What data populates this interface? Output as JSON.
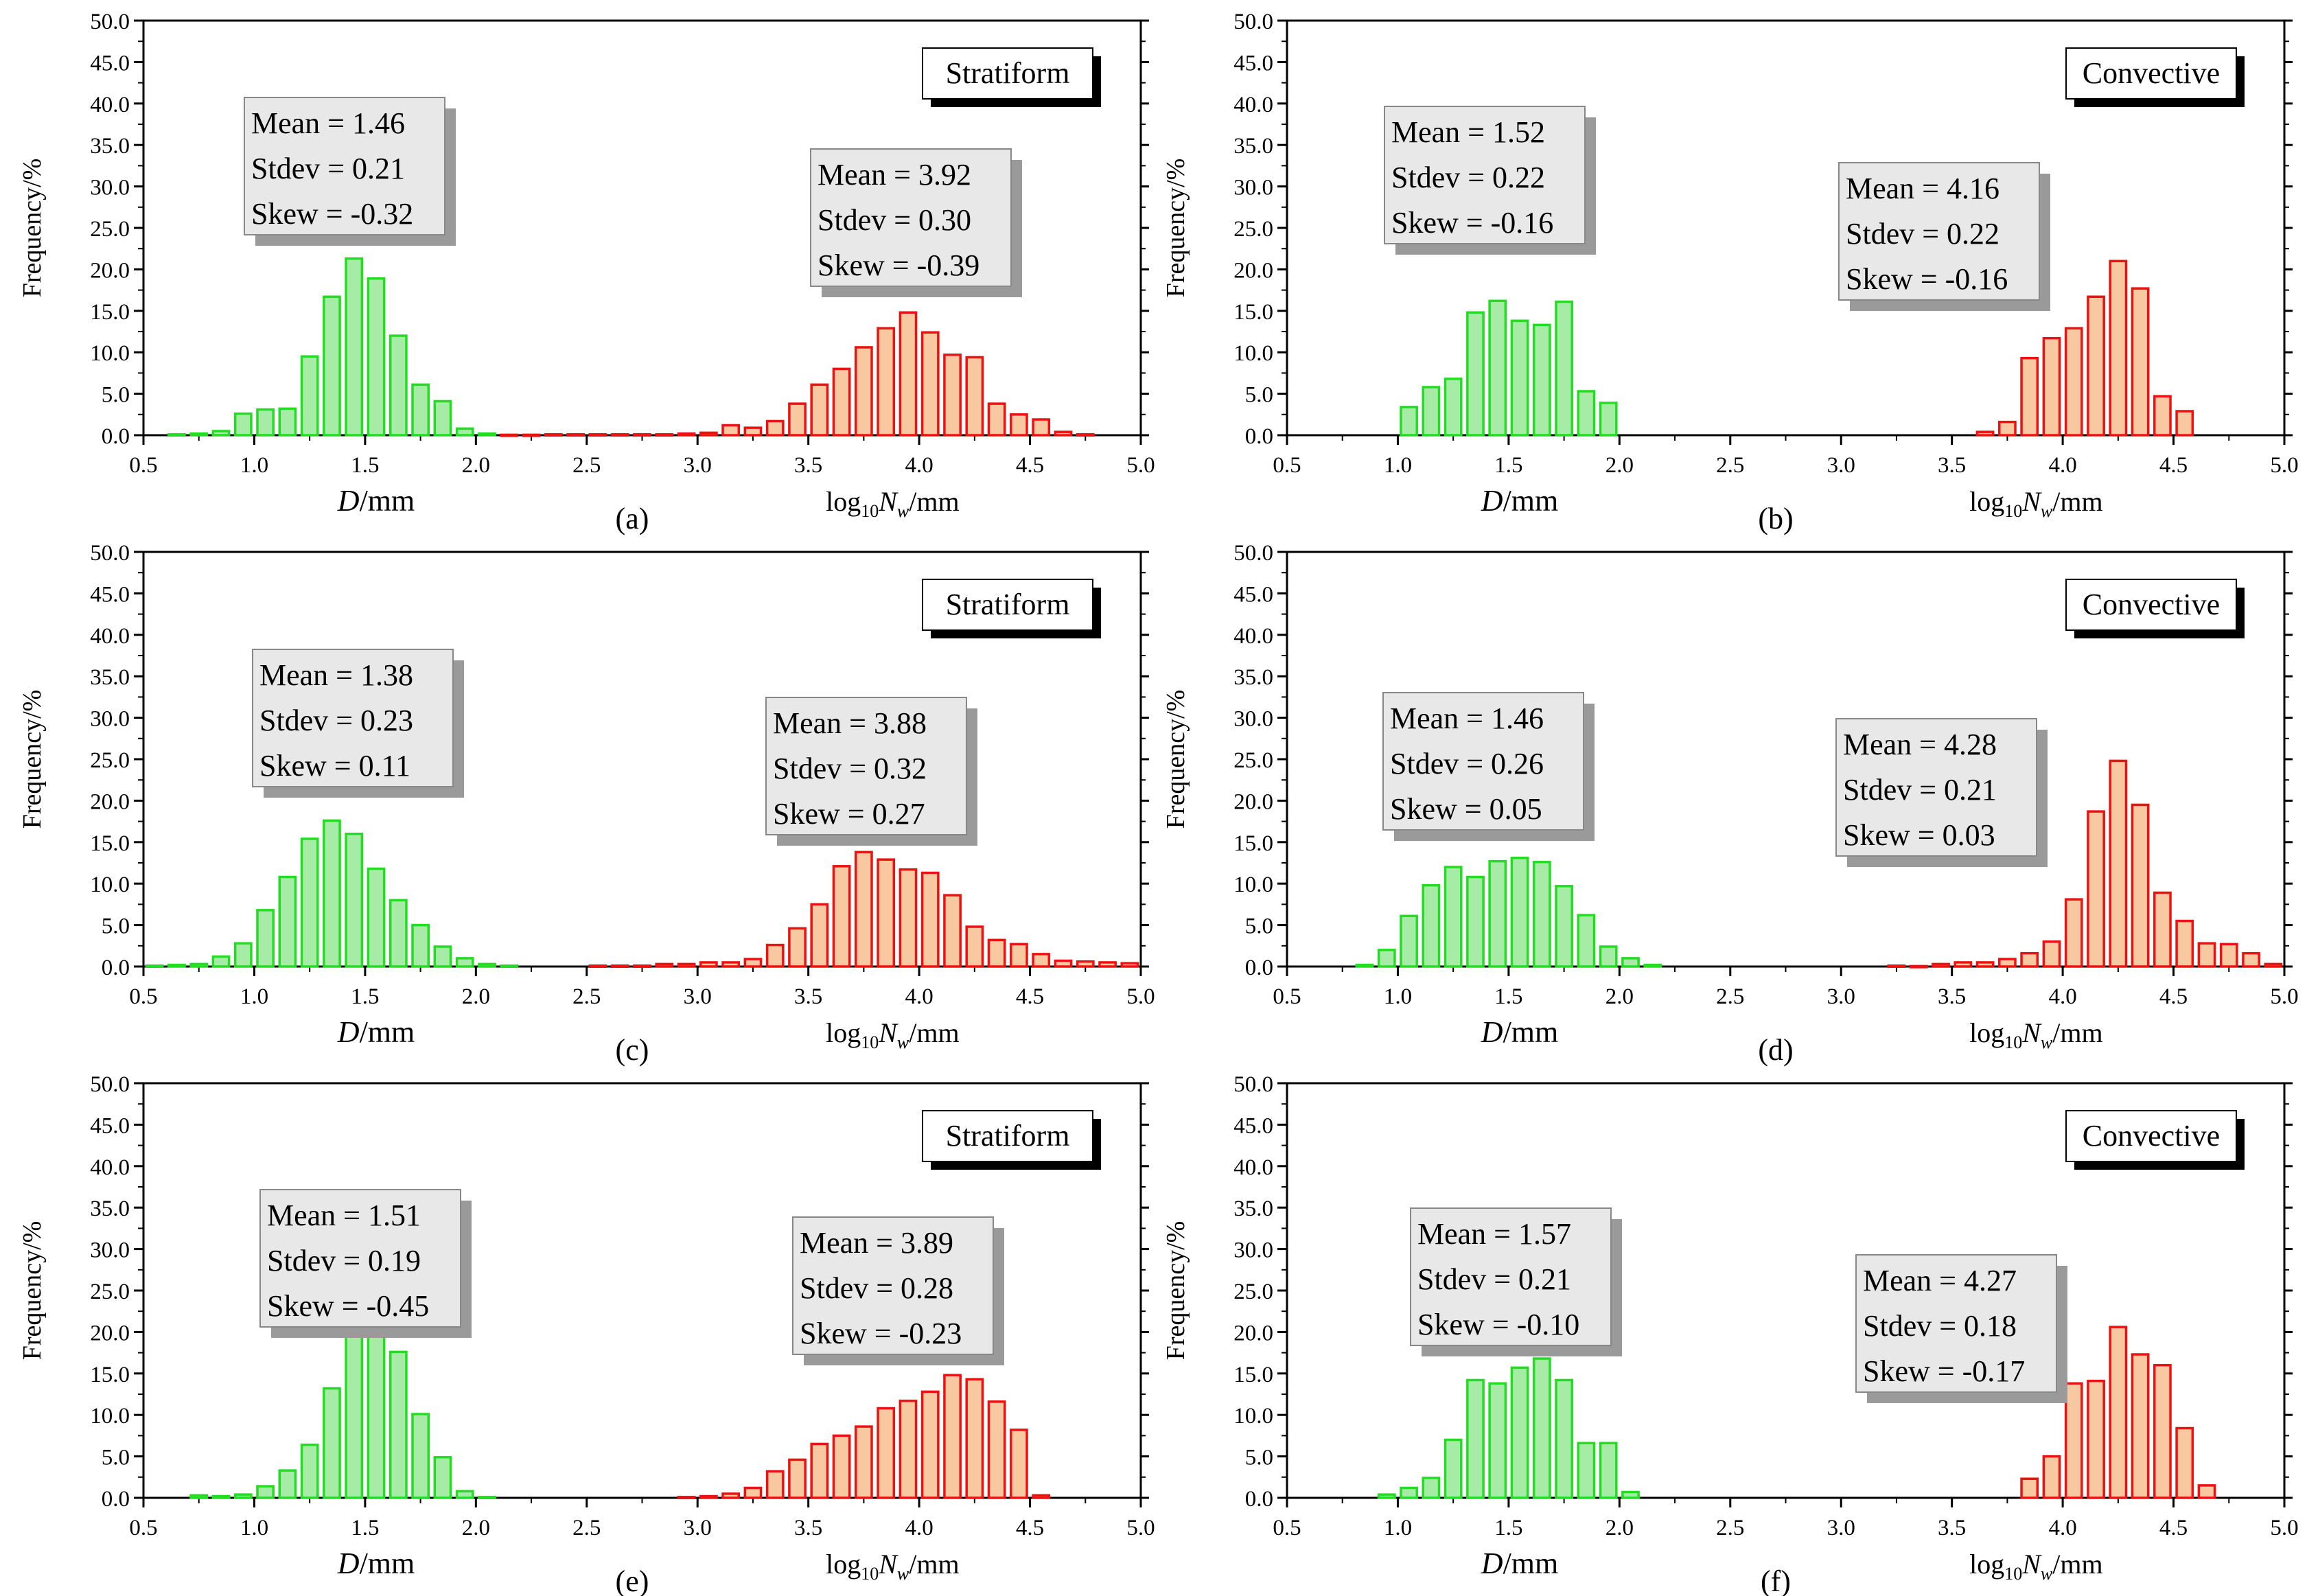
{
  "figure": {
    "x_ticks": [
      "0.5",
      "1.0",
      "1.5",
      "2.0",
      "2.5",
      "3.0",
      "3.5",
      "4.0",
      "4.5",
      "5.0"
    ],
    "y_ticks": [
      "0.0",
      "5.0",
      "10.0",
      "15.0",
      "20.0",
      "25.0",
      "30.0",
      "35.0",
      "40.0",
      "45.0",
      "50.0"
    ],
    "ylabel": "Frequency/%",
    "xlabel_d_italic": "D",
    "xlabel_d_unit": "/mm",
    "xlabel_nw_log": "log",
    "xlabel_nw_sub": "10",
    "xlabel_nw_var": "N",
    "xlabel_nw_varsub": "w",
    "xlabel_nw_unit": "/mm",
    "colors": {
      "d_fill": "#a6eca6",
      "d_edge": "#22dd22",
      "nw_fill": "#f8c9a0",
      "nw_edge": "#ee1111",
      "stat_box_fill": "#e8e8e8",
      "stat_shadow": "#9a9a9a"
    }
  },
  "chart_data": [
    {
      "type": "bar",
      "panel_label": "(a)",
      "rain_type": "Stratiform",
      "xlim": [
        0.5,
        5.0
      ],
      "ylim": [
        0,
        50
      ],
      "d_stats": {
        "mean": "Mean = 1.46",
        "stdev": "Stdev = 0.21",
        "skew": "Skew = -0.32"
      },
      "nw_stats": {
        "mean": "Mean = 3.92",
        "stdev": "Stdev = 0.30",
        "skew": "Skew = -0.39"
      },
      "series": [
        {
          "name": "D/mm",
          "x": [
            0.65,
            0.75,
            0.85,
            0.95,
            1.05,
            1.15,
            1.25,
            1.35,
            1.45,
            1.55,
            1.65,
            1.75,
            1.85,
            1.95,
            2.05
          ],
          "values": [
            0.1,
            0.2,
            0.5,
            2.6,
            3.1,
            3.2,
            9.5,
            16.7,
            21.3,
            18.9,
            12.0,
            6.1,
            4.1,
            0.8,
            0.2
          ]
        },
        {
          "name": "log10Nw/mm",
          "x": [
            2.15,
            2.25,
            2.35,
            2.45,
            2.55,
            2.65,
            2.75,
            2.85,
            2.95,
            3.05,
            3.15,
            3.25,
            3.35,
            3.45,
            3.55,
            3.65,
            3.75,
            3.85,
            3.95,
            4.05,
            4.15,
            4.25,
            4.35,
            4.45,
            4.55,
            4.65,
            4.75
          ],
          "values": [
            0.05,
            0.05,
            0.1,
            0.1,
            0.1,
            0.1,
            0.1,
            0.1,
            0.2,
            0.3,
            1.2,
            0.9,
            1.7,
            3.8,
            6.1,
            8.0,
            10.6,
            12.9,
            14.8,
            12.4,
            9.7,
            9.4,
            3.8,
            2.5,
            1.9,
            0.4,
            0.1
          ]
        }
      ]
    },
    {
      "type": "bar",
      "panel_label": "(b)",
      "rain_type": "Convective",
      "xlim": [
        0.5,
        5.0
      ],
      "ylim": [
        0,
        50
      ],
      "d_stats": {
        "mean": "Mean = 1.52",
        "stdev": "Stdev = 0.22",
        "skew": "Skew = -0.16"
      },
      "nw_stats": {
        "mean": "Mean = 4.16",
        "stdev": "Stdev = 0.22",
        "skew": "Skew = -0.16"
      },
      "series": [
        {
          "name": "D/mm",
          "x": [
            1.05,
            1.15,
            1.25,
            1.35,
            1.45,
            1.55,
            1.65,
            1.75,
            1.85,
            1.95
          ],
          "values": [
            3.4,
            5.8,
            6.8,
            14.8,
            16.2,
            13.8,
            13.3,
            16.1,
            5.3,
            3.9
          ]
        },
        {
          "name": "log10Nw/mm",
          "x": [
            3.65,
            3.75,
            3.85,
            3.95,
            4.05,
            4.15,
            4.25,
            4.35,
            4.45,
            4.55
          ],
          "values": [
            0.4,
            1.6,
            9.3,
            11.7,
            12.9,
            16.7,
            21.0,
            17.7,
            4.7,
            2.9
          ]
        }
      ]
    },
    {
      "type": "bar",
      "panel_label": "(c)",
      "rain_type": "Stratiform",
      "xlim": [
        0.5,
        5.0
      ],
      "ylim": [
        0,
        50
      ],
      "d_stats": {
        "mean": "Mean = 1.38",
        "stdev": "Stdev = 0.23",
        "skew": "Skew = 0.11"
      },
      "nw_stats": {
        "mean": "Mean = 3.88",
        "stdev": "Stdev = 0.32",
        "skew": "Skew = 0.27"
      },
      "series": [
        {
          "name": "D/mm",
          "x": [
            0.55,
            0.65,
            0.75,
            0.85,
            0.95,
            1.05,
            1.15,
            1.25,
            1.35,
            1.45,
            1.55,
            1.65,
            1.75,
            1.85,
            1.95,
            2.05,
            2.15
          ],
          "values": [
            0.1,
            0.2,
            0.3,
            1.2,
            2.8,
            6.8,
            10.8,
            15.4,
            17.6,
            16.0,
            11.8,
            8.0,
            5.0,
            2.4,
            1.0,
            0.3,
            0.1
          ]
        },
        {
          "name": "log10Nw/mm",
          "x": [
            2.55,
            2.65,
            2.75,
            2.85,
            2.95,
            3.05,
            3.15,
            3.25,
            3.35,
            3.45,
            3.55,
            3.65,
            3.75,
            3.85,
            3.95,
            4.05,
            4.15,
            4.25,
            4.35,
            4.45,
            4.55,
            4.65,
            4.75,
            4.85,
            4.95
          ],
          "values": [
            0.1,
            0.1,
            0.1,
            0.3,
            0.3,
            0.5,
            0.5,
            0.9,
            2.6,
            4.6,
            7.5,
            12.1,
            13.8,
            12.9,
            11.7,
            11.3,
            8.6,
            4.8,
            3.2,
            2.7,
            1.5,
            0.7,
            0.6,
            0.5,
            0.4
          ]
        }
      ]
    },
    {
      "type": "bar",
      "panel_label": "(d)",
      "rain_type": "Convective",
      "xlim": [
        0.5,
        5.0
      ],
      "ylim": [
        0,
        50
      ],
      "d_stats": {
        "mean": "Mean = 1.46",
        "stdev": "Stdev = 0.26",
        "skew": "Skew = 0.05"
      },
      "nw_stats": {
        "mean": "Mean = 4.28",
        "stdev": "Stdev = 0.21",
        "skew": "Skew = 0.03"
      },
      "series": [
        {
          "name": "D/mm",
          "x": [
            0.85,
            0.95,
            1.05,
            1.15,
            1.25,
            1.35,
            1.45,
            1.55,
            1.65,
            1.75,
            1.85,
            1.95,
            2.05,
            2.15
          ],
          "values": [
            0.2,
            2.0,
            6.1,
            9.8,
            12.0,
            10.8,
            12.7,
            13.1,
            12.6,
            9.7,
            6.2,
            2.4,
            1.0,
            0.2
          ]
        },
        {
          "name": "log10Nw/mm",
          "x": [
            3.25,
            3.35,
            3.45,
            3.55,
            3.65,
            3.75,
            3.85,
            3.95,
            4.05,
            4.15,
            4.25,
            4.35,
            4.45,
            4.55,
            4.65,
            4.75,
            4.85,
            4.95
          ],
          "values": [
            0.1,
            0.05,
            0.3,
            0.5,
            0.5,
            0.9,
            1.6,
            3.0,
            8.1,
            18.7,
            24.8,
            19.5,
            8.9,
            5.5,
            2.8,
            2.7,
            1.6,
            0.3
          ]
        }
      ]
    },
    {
      "type": "bar",
      "panel_label": "(e)",
      "rain_type": "Stratiform",
      "xlim": [
        0.5,
        5.0
      ],
      "ylim": [
        0,
        50
      ],
      "d_stats": {
        "mean": "Mean = 1.51",
        "stdev": "Stdev = 0.19",
        "skew": "Skew = -0.45"
      },
      "nw_stats": {
        "mean": "Mean = 3.89",
        "stdev": "Stdev = 0.28",
        "skew": "Skew = -0.23"
      },
      "series": [
        {
          "name": "D/mm",
          "x": [
            0.75,
            0.85,
            0.95,
            1.05,
            1.15,
            1.25,
            1.35,
            1.45,
            1.55,
            1.65,
            1.75,
            1.85,
            1.95,
            2.05
          ],
          "values": [
            0.3,
            0.2,
            0.4,
            1.4,
            3.3,
            6.4,
            13.2,
            20.3,
            20.2,
            17.6,
            10.1,
            4.9,
            0.8,
            0.1
          ]
        },
        {
          "name": "log10Nw/mm",
          "x": [
            2.95,
            3.05,
            3.15,
            3.25,
            3.35,
            3.45,
            3.55,
            3.65,
            3.75,
            3.85,
            3.95,
            4.05,
            4.15,
            4.25,
            4.35,
            4.45,
            4.55
          ],
          "values": [
            0.1,
            0.2,
            0.5,
            1.2,
            3.2,
            4.6,
            6.5,
            7.5,
            8.6,
            10.8,
            11.7,
            12.8,
            14.8,
            14.3,
            11.6,
            8.2,
            0.3
          ]
        }
      ]
    },
    {
      "type": "bar",
      "panel_label": "(f)",
      "rain_type": "Convective",
      "xlim": [
        0.5,
        5.0
      ],
      "ylim": [
        0,
        50
      ],
      "d_stats": {
        "mean": "Mean = 1.57",
        "stdev": "Stdev = 0.21",
        "skew": "Skew = -0.10"
      },
      "nw_stats": {
        "mean": "Mean = 4.27",
        "stdev": "Stdev = 0.18",
        "skew": "Skew = -0.17"
      },
      "series": [
        {
          "name": "D/mm",
          "x": [
            0.95,
            1.05,
            1.15,
            1.25,
            1.35,
            1.45,
            1.55,
            1.65,
            1.75,
            1.85,
            1.95,
            2.05
          ],
          "values": [
            0.4,
            1.2,
            2.4,
            7.0,
            14.2,
            13.8,
            15.7,
            16.8,
            14.2,
            6.6,
            6.6,
            0.7
          ]
        },
        {
          "name": "log10Nw/mm",
          "x": [
            3.85,
            3.95,
            4.05,
            4.15,
            4.25,
            4.35,
            4.45,
            4.55,
            4.65
          ],
          "values": [
            2.3,
            5.0,
            13.8,
            14.1,
            20.6,
            17.3,
            16.0,
            8.4,
            1.5
          ]
        }
      ]
    }
  ]
}
